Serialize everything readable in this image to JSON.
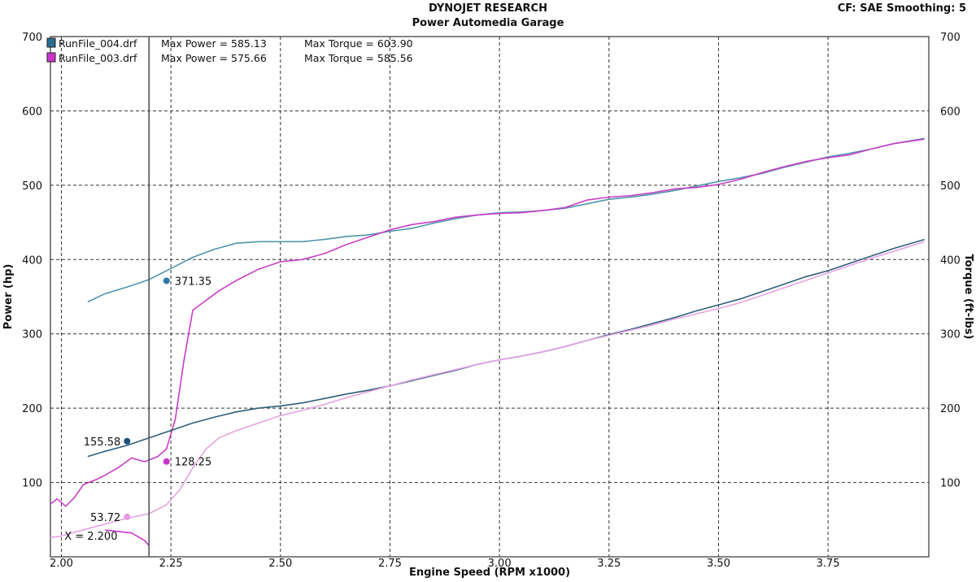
{
  "header": {
    "title": "DYNOJET RESEARCH",
    "subtitle": "Power Automedia Garage",
    "correction": "CF: SAE  Smoothing: 5"
  },
  "chart_data": {
    "type": "line",
    "title": "DYNOJET RESEARCH",
    "subtitle": "Power Automedia Garage",
    "xlabel": "Engine Speed (RPM x1000)",
    "ylabel_left": "Power (hp)",
    "ylabel_right": "Torque (ft-lbs)",
    "xlim": [
      1.975,
      3.98
    ],
    "ylim": [
      0,
      700
    ],
    "xticks": [
      "2.00",
      "2.25",
      "2.50",
      "2.75",
      "3.00",
      "3.25",
      "3.50",
      "3.75"
    ],
    "yticks": [
      "100",
      "200",
      "300",
      "400",
      "500",
      "600",
      "700"
    ],
    "grid": true,
    "legend_position": "top-left",
    "legend": [
      {
        "file": "RunFile_004.drf",
        "power_label": "Max Power = 585.13",
        "torque_label": "Max Torque = 603.90",
        "color": "#2a6f8f"
      },
      {
        "file": "RunFile_003.drf",
        "power_label": "Max Power = 575.66",
        "torque_label": "Max Torque = 585.56",
        "color": "#cc33cc"
      }
    ],
    "cursor": {
      "x": 2.2,
      "label": "X = 2.200"
    },
    "markers": [
      {
        "x": 2.24,
        "y": 371.35,
        "label": "371.35",
        "color": "#2a78a8",
        "label_side": "right"
      },
      {
        "x": 2.15,
        "y": 155.58,
        "label": "155.58",
        "color": "#1f4f7a",
        "label_side": "left"
      },
      {
        "x": 2.24,
        "y": 128.25,
        "label": "128.25",
        "color": "#cc33cc",
        "label_side": "right"
      },
      {
        "x": 2.15,
        "y": 53.72,
        "label": "53.72",
        "color": "#e39be3",
        "label_side": "left"
      }
    ],
    "series": [
      {
        "name": "RunFile_004.drf Torque",
        "color": "#4f96aa",
        "x": [
          2.06,
          2.1,
          2.15,
          2.2,
          2.25,
          2.3,
          2.35,
          2.4,
          2.45,
          2.5,
          2.55,
          2.6,
          2.65,
          2.7,
          2.75,
          2.8,
          2.85,
          2.9,
          2.95,
          3.0,
          3.05,
          3.1,
          3.15,
          3.2,
          3.25,
          3.3,
          3.35,
          3.4,
          3.45,
          3.5,
          3.55,
          3.6,
          3.65,
          3.7,
          3.75,
          3.8,
          3.85,
          3.9,
          3.97
        ],
        "y": [
          343,
          354,
          363,
          373,
          388,
          403,
          414,
          422,
          424,
          424,
          424,
          427,
          431,
          433,
          438,
          442,
          449,
          455,
          460,
          463,
          464,
          466,
          469,
          475,
          481,
          484,
          488,
          493,
          499,
          505,
          510,
          516,
          524,
          531,
          538,
          543,
          549,
          556,
          563
        ]
      },
      {
        "name": "RunFile_003.drf Torque",
        "color": "#c83ec8",
        "x": [
          1.975,
          1.99,
          2.01,
          2.03,
          2.05,
          2.08,
          2.1,
          2.13,
          2.16,
          2.19,
          2.22,
          2.24,
          2.26,
          2.28,
          2.3,
          2.33,
          2.36,
          2.4,
          2.45,
          2.5,
          2.55,
          2.6,
          2.65,
          2.7,
          2.75,
          2.8,
          2.85,
          2.9,
          2.95,
          3.0,
          3.05,
          3.1,
          3.15,
          3.2,
          3.25,
          3.3,
          3.35,
          3.4,
          3.45,
          3.5,
          3.55,
          3.6,
          3.65,
          3.7,
          3.75,
          3.8,
          3.85,
          3.9,
          3.97
        ],
        "y": [
          71,
          78,
          68,
          80,
          97,
          104,
          110,
          120,
          133,
          128,
          135,
          145,
          185,
          265,
          332,
          345,
          358,
          372,
          387,
          397,
          400,
          408,
          420,
          430,
          440,
          447,
          451,
          457,
          460,
          462,
          463,
          466,
          470,
          480,
          484,
          486,
          490,
          495,
          497,
          501,
          508,
          517,
          525,
          532,
          537,
          541,
          549,
          556,
          562
        ]
      },
      {
        "name": "RunFile_004.drf Power",
        "color": "#2e607a",
        "x": [
          2.06,
          2.1,
          2.15,
          2.2,
          2.25,
          2.3,
          2.35,
          2.4,
          2.45,
          2.5,
          2.55,
          2.6,
          2.65,
          2.7,
          2.75,
          2.8,
          2.85,
          2.9,
          2.95,
          3.0,
          3.05,
          3.1,
          3.15,
          3.2,
          3.25,
          3.3,
          3.35,
          3.4,
          3.45,
          3.5,
          3.55,
          3.6,
          3.65,
          3.7,
          3.75,
          3.8,
          3.85,
          3.9,
          3.97
        ],
        "y": [
          135,
          142,
          150,
          160,
          170,
          180,
          188,
          195,
          200,
          203,
          207,
          213,
          219,
          224,
          230,
          237,
          244,
          251,
          259,
          265,
          270,
          276,
          283,
          291,
          299,
          306,
          314,
          322,
          331,
          339,
          347,
          357,
          367,
          377,
          385,
          395,
          405,
          415,
          427
        ]
      },
      {
        "name": "RunFile_003.drf Power",
        "color": "#e6a3e6",
        "x": [
          1.975,
          2.0,
          2.03,
          2.06,
          2.1,
          2.13,
          2.16,
          2.2,
          2.24,
          2.27,
          2.3,
          2.33,
          2.36,
          2.4,
          2.45,
          2.5,
          2.55,
          2.6,
          2.65,
          2.7,
          2.75,
          2.8,
          2.85,
          2.9,
          2.95,
          3.0,
          3.05,
          3.1,
          3.15,
          3.2,
          3.25,
          3.3,
          3.35,
          3.4,
          3.45,
          3.5,
          3.55,
          3.6,
          3.65,
          3.7,
          3.75,
          3.8,
          3.85,
          3.9,
          3.97
        ],
        "y": [
          26,
          28,
          33,
          38,
          44,
          49,
          53,
          58,
          70,
          90,
          120,
          145,
          160,
          170,
          180,
          190,
          197,
          205,
          214,
          222,
          230,
          238,
          245,
          252,
          259,
          265,
          270,
          276,
          283,
          291,
          298,
          305,
          312,
          320,
          327,
          334,
          342,
          352,
          362,
          372,
          382,
          392,
          402,
          411,
          424
        ]
      },
      {
        "name": "RunFile_003.drf Power low",
        "color": "#cc33cc",
        "x": [
          2.1,
          2.13,
          2.16,
          2.19,
          2.2
        ],
        "y": [
          36,
          34,
          32,
          22,
          15
        ]
      }
    ]
  }
}
